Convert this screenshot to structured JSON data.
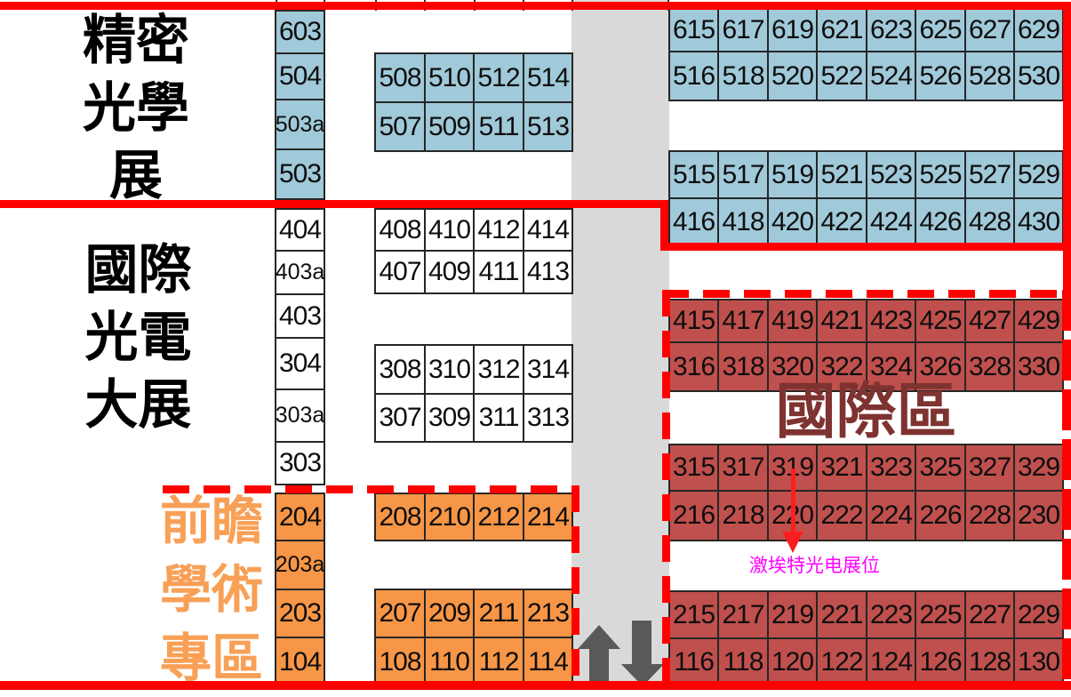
{
  "labels": {
    "precision_optics": [
      "精密",
      "光學",
      "展"
    ],
    "intl_optoelectronics": [
      "國際",
      "光電",
      "大展"
    ],
    "academic_zone": [
      "前瞻",
      "學術",
      "專區"
    ],
    "international_zone": "國際區",
    "exhibitor_note": "激埃特光电展位"
  },
  "colors": {
    "booth_blue": "#A0C9D9",
    "booth_white": "#FFFFFF",
    "booth_orange": "#F79646",
    "booth_brick": "#C0504D",
    "aisle_gray": "#D9D9D9",
    "arrow_gray": "#595959",
    "line_red": "#FF0000",
    "intl_label_maroon": "#7E3331",
    "academic_label_orange": "#F8A056",
    "note_magenta": "#FF00FF",
    "pointer_red": "#FA1F1F"
  },
  "booth_blocks": [
    {
      "id": "optics-left-column",
      "color_key": "booth_blue",
      "rows": [
        [
          "603"
        ],
        [
          "504"
        ],
        [
          "503a"
        ],
        [
          "503"
        ]
      ]
    },
    {
      "id": "optics-grid-500",
      "color_key": "booth_blue",
      "rows": [
        [
          "508",
          "510",
          "512",
          "514"
        ],
        [
          "507",
          "509",
          "511",
          "513"
        ]
      ]
    },
    {
      "id": "optics-right-600",
      "color_key": "booth_blue",
      "rows": [
        [
          "615",
          "617",
          "619",
          "621",
          "623",
          "625",
          "627",
          "629"
        ],
        [
          "516",
          "518",
          "520",
          "522",
          "524",
          "526",
          "528",
          "530"
        ]
      ]
    },
    {
      "id": "optics-right-500-400",
      "color_key": "booth_blue",
      "rows": [
        [
          "515",
          "517",
          "519",
          "521",
          "523",
          "525",
          "527",
          "529"
        ],
        [
          "416",
          "418",
          "420",
          "422",
          "424",
          "426",
          "428",
          "430"
        ]
      ]
    },
    {
      "id": "expo-left-column",
      "color_key": "booth_white",
      "rows": [
        [
          "404"
        ],
        [
          "403a"
        ],
        [
          "403"
        ],
        [
          "304"
        ],
        [
          "303a"
        ],
        [
          "303"
        ]
      ]
    },
    {
      "id": "expo-grid-400",
      "color_key": "booth_white",
      "rows": [
        [
          "408",
          "410",
          "412",
          "414"
        ],
        [
          "407",
          "409",
          "411",
          "413"
        ]
      ]
    },
    {
      "id": "expo-grid-300",
      "color_key": "booth_white",
      "rows": [
        [
          "308",
          "310",
          "312",
          "314"
        ],
        [
          "307",
          "309",
          "311",
          "313"
        ]
      ]
    },
    {
      "id": "academic-left-column",
      "color_key": "booth_orange",
      "rows": [
        [
          "204"
        ],
        [
          "203a"
        ],
        [
          "203"
        ],
        [
          "104"
        ]
      ]
    },
    {
      "id": "academic-grid-200",
      "color_key": "booth_orange",
      "rows": [
        [
          "208",
          "210",
          "212",
          "214"
        ]
      ]
    },
    {
      "id": "academic-grid-100",
      "color_key": "booth_orange",
      "rows": [
        [
          "207",
          "209",
          "211",
          "213"
        ],
        [
          "108",
          "110",
          "112",
          "114"
        ]
      ]
    },
    {
      "id": "intl-grid-400-300",
      "color_key": "booth_brick",
      "rows": [
        [
          "415",
          "417",
          "419",
          "421",
          "423",
          "425",
          "427",
          "429"
        ],
        [
          "316",
          "318",
          "320",
          "322",
          "324",
          "326",
          "328",
          "330"
        ]
      ]
    },
    {
      "id": "intl-grid-300-200",
      "color_key": "booth_brick",
      "rows": [
        [
          "315",
          "317",
          "319",
          "321",
          "323",
          "325",
          "327",
          "329"
        ],
        [
          "216",
          "218",
          "220",
          "222",
          "224",
          "226",
          "228",
          "230"
        ]
      ]
    },
    {
      "id": "intl-grid-100",
      "color_key": "booth_brick",
      "rows": [
        [
          "215",
          "217",
          "219",
          "221",
          "223",
          "225",
          "227",
          "229"
        ],
        [
          "116",
          "118",
          "120",
          "122",
          "124",
          "126",
          "128",
          "130"
        ]
      ]
    }
  ]
}
